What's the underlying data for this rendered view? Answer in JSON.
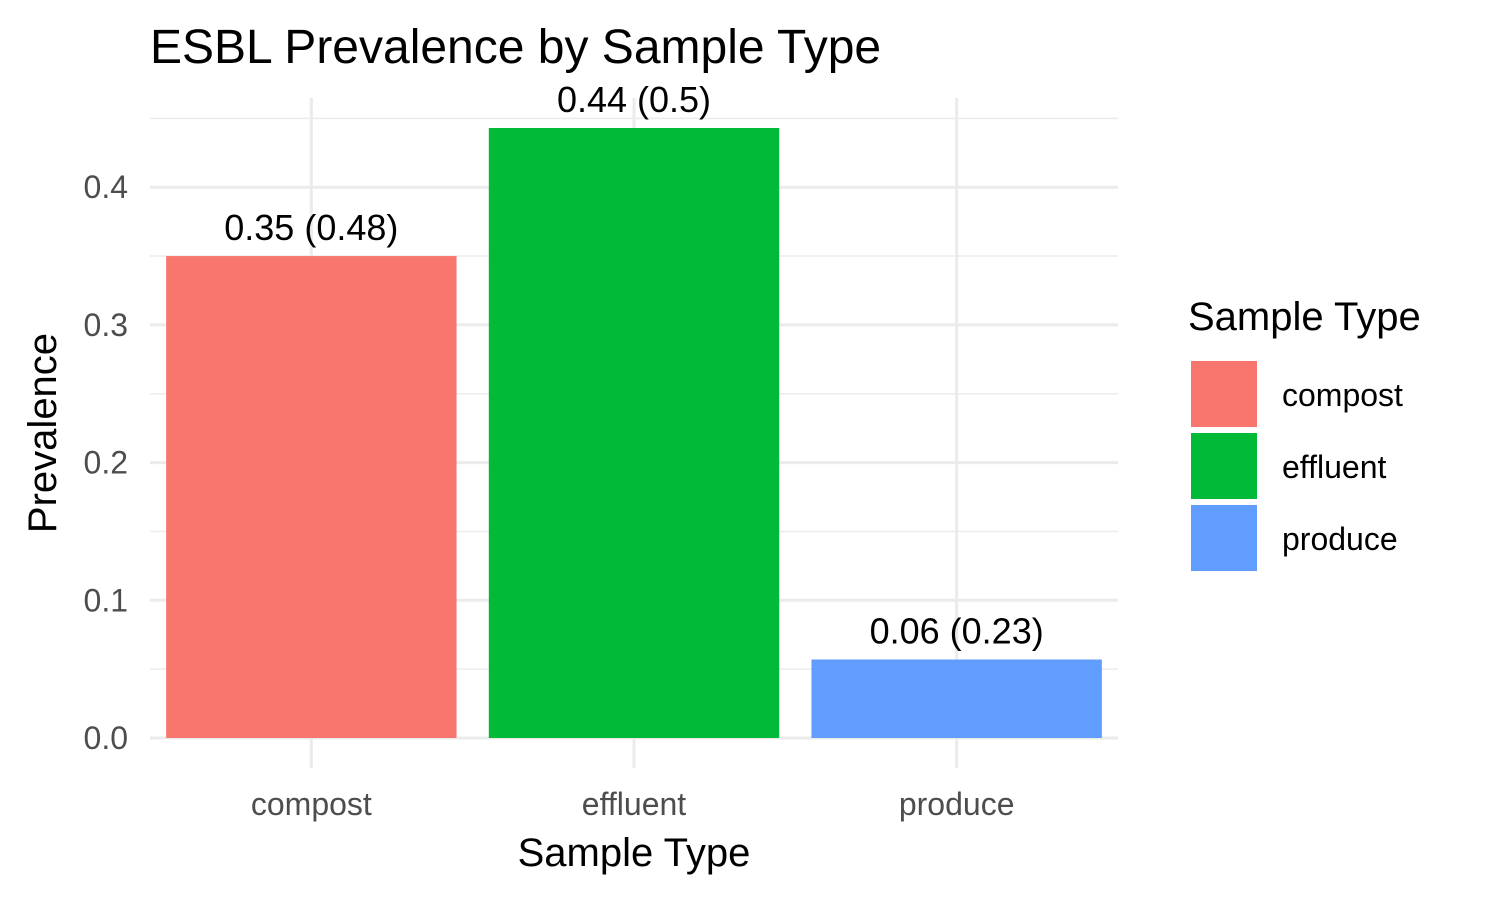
{
  "chart_data": {
    "type": "bar",
    "title": "ESBL Prevalence by Sample Type",
    "xlabel": "Sample Type",
    "ylabel": "Prevalence",
    "categories": [
      "compost",
      "effluent",
      "produce"
    ],
    "values": [
      0.35,
      0.443,
      0.057
    ],
    "data_labels": [
      "0.35 (0.48)",
      "0.44 (0.5)",
      "0.06 (0.23)"
    ],
    "colors": [
      "#F8766D",
      "#00BA38",
      "#619CFF"
    ],
    "ylim": [
      0,
      0.45
    ],
    "yticks": [
      0.0,
      0.1,
      0.2,
      0.3,
      0.4
    ],
    "ytick_labels": [
      "0.0",
      "0.1",
      "0.2",
      "0.3",
      "0.4"
    ],
    "grid": true,
    "legend": {
      "title": "Sample Type",
      "position": "right",
      "entries": [
        "compost",
        "effluent",
        "produce"
      ]
    }
  }
}
